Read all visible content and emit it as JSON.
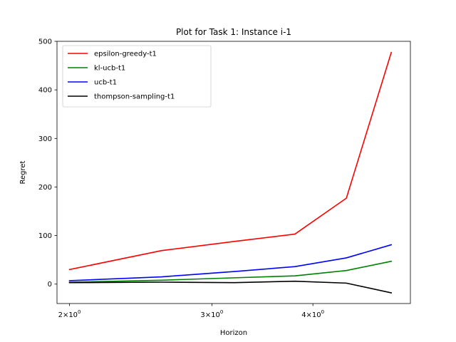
{
  "chart_data": {
    "type": "line",
    "title": "Plot for Task 1: Instance i-1",
    "xlabel": "Horizon",
    "ylabel": "Regret",
    "xscale": "log",
    "xlim": [
      1.93,
      5.28
    ],
    "ylim": [
      -40,
      500
    ],
    "x": [
      2.0,
      2.6,
      3.2,
      3.8,
      4.4,
      5.0
    ],
    "x_ticks": [
      {
        "value": 2,
        "base": "2×10",
        "exp": "0"
      },
      {
        "value": 3,
        "base": "3×10",
        "exp": "0"
      },
      {
        "value": 4,
        "base": "4×10",
        "exp": "0"
      }
    ],
    "y_ticks": [
      0,
      100,
      200,
      300,
      400,
      500
    ],
    "grid": false,
    "legend_position": "top-left",
    "series": [
      {
        "name": "epsilon-greedy-t1",
        "color": "#ff0000",
        "values": [
          30,
          69,
          88,
          103,
          177,
          477
        ]
      },
      {
        "name": "kl-ucb-t1",
        "color": "#008000",
        "values": [
          4,
          8,
          13,
          17,
          28,
          47
        ]
      },
      {
        "name": "ucb-t1",
        "color": "#0000ff",
        "values": [
          7,
          15,
          26,
          36,
          54,
          81
        ]
      },
      {
        "name": "thompson-sampling-t1",
        "color": "#000000",
        "values": [
          3,
          4,
          3,
          6,
          2,
          -18
        ]
      }
    ]
  }
}
